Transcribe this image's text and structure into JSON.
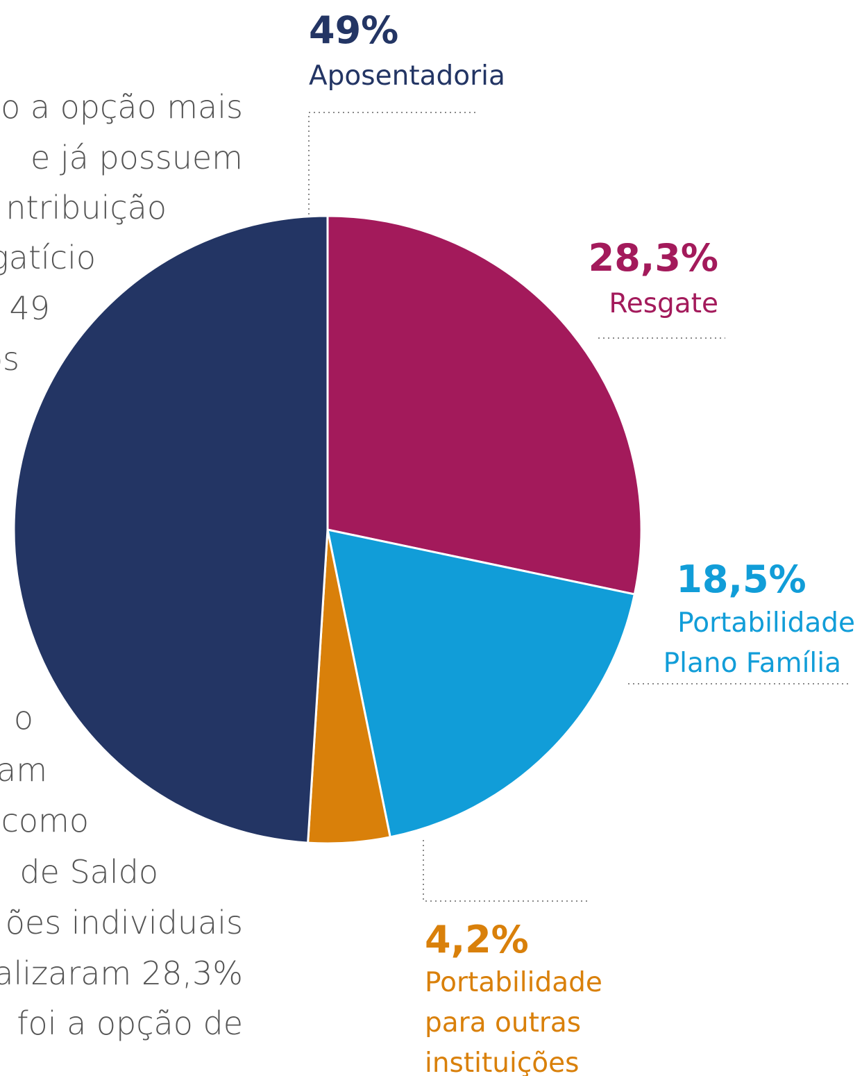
{
  "chart_data": {
    "type": "pie",
    "categories": [
      [
        "Resgate"
      ],
      [
        "Portabilidade",
        "Plano Família"
      ],
      [
        "Portabilidade",
        "para outras",
        "instituições"
      ],
      [
        "Aposentadoria"
      ]
    ],
    "values": [
      28.3,
      18.5,
      4.2,
      49
    ],
    "value_labels": [
      "28,3%",
      "18,5%",
      "4,2%",
      "49%"
    ],
    "colors": [
      "#a31a5b",
      "#119dd8",
      "#d9800a",
      "#233564"
    ]
  },
  "background_text": {
    "lines": [
      "o a opção mais",
      "e já possuem",
      "ntribuição",
      "gatício",
      "49",
      "os",
      "o",
      "am",
      "como",
      "de Saldo",
      "ões individuais",
      "alizaram 28,3%",
      "foi a opção de"
    ]
  }
}
